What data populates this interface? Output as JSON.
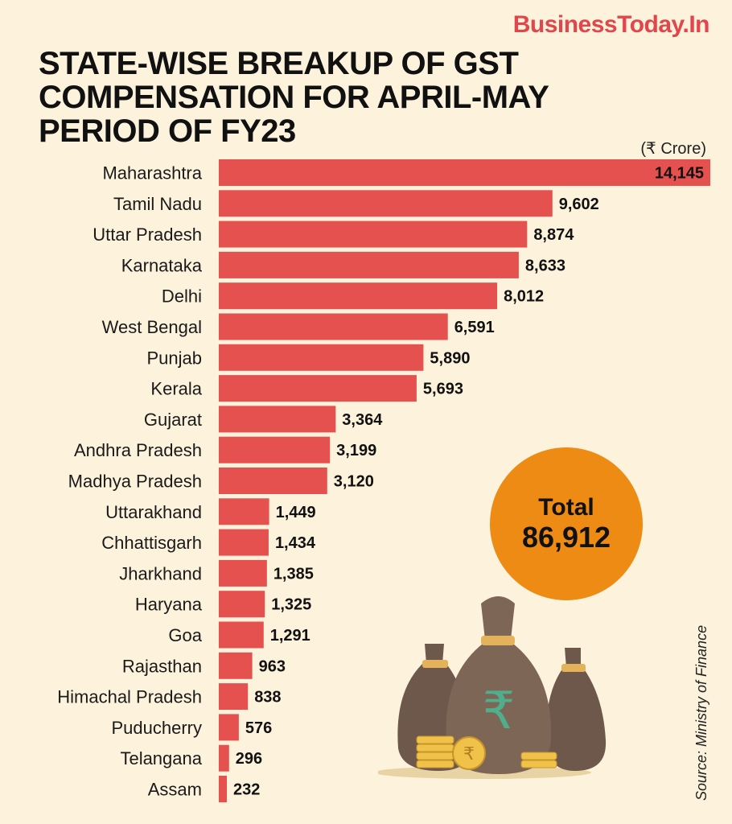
{
  "brand": "BusinessToday.In",
  "title_lines": [
    "STATE-WISE BREAKUP OF GST",
    "COMPENSATION FOR APRIL-MAY",
    "PERIOD OF FY23"
  ],
  "unit": "(₹ Crore)",
  "total": {
    "label": "Total",
    "value": "86,912"
  },
  "source": "Source: Ministry of Finance",
  "colors": {
    "bar": "#e4514f",
    "total_circle": "#ee8b14",
    "background": "#fdf3dc",
    "brand": "#e0464b"
  },
  "icons": [
    "money-bag-icon",
    "rupee-coin-icon"
  ],
  "chart_data": {
    "type": "bar",
    "orientation": "horizontal",
    "categories": [
      "Maharashtra",
      "Tamil Nadu",
      "Uttar Pradesh",
      "Karnataka",
      "Delhi",
      "West Bengal",
      "Punjab",
      "Kerala",
      "Gujarat",
      "Andhra Pradesh",
      "Madhya Pradesh",
      "Uttarakhand",
      "Chhattisgarh",
      "Jharkhand",
      "Haryana",
      "Goa",
      "Rajasthan",
      "Himachal Pradesh",
      "Puducherry",
      "Telangana",
      "Assam"
    ],
    "values": [
      14145,
      9602,
      8874,
      8633,
      8012,
      6591,
      5890,
      5693,
      3364,
      3199,
      3120,
      1449,
      1434,
      1385,
      1325,
      1291,
      963,
      838,
      576,
      296,
      232
    ],
    "value_labels": [
      "14,145",
      "9,602",
      "8,874",
      "8,633",
      "8,012",
      "6,591",
      "5,890",
      "5,693",
      "3,364",
      "3,199",
      "3,120",
      "1,449",
      "1,434",
      "1,385",
      "1,325",
      "1,291",
      "963",
      "838",
      "576",
      "296",
      "232"
    ],
    "xlim": [
      0,
      14145
    ],
    "grid": false,
    "legend": "none"
  }
}
